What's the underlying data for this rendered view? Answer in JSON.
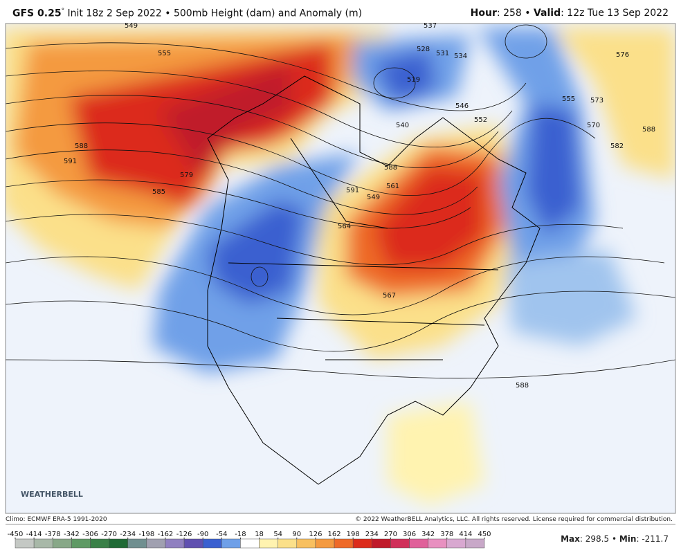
{
  "header": {
    "model": "GFS 0.25",
    "degree": "°",
    "init": "Init 18z 2 Sep 2022",
    "separator": "•",
    "product": "500mb Height (dam) and Anomaly (m)",
    "hour_label": "Hour",
    "hour": "258",
    "valid_label": "Valid",
    "valid": "12z Tue 13 Sep 2022"
  },
  "map": {
    "logo": "WEATHERBELL",
    "contour_labels": [
      "549",
      "555",
      "588",
      "591",
      "585",
      "579",
      "528",
      "531",
      "534",
      "519",
      "537",
      "546",
      "552",
      "573",
      "570",
      "555",
      "582",
      "576",
      "588",
      "591",
      "549",
      "561",
      "564",
      "567",
      "588",
      "588",
      "540"
    ]
  },
  "footer": {
    "climo": "Climo: ECMWF ERA-5 1991-2020",
    "copyright": "© 2022 WeatherBELL Analytics, LLC. All rights reserved. License required for commercial distribution.",
    "max_label": "Max",
    "max": "298.5",
    "min_label": "Min",
    "min": "-211.7"
  },
  "colorbar": {
    "ticks": [
      -450,
      -414,
      -378,
      -342,
      -306,
      -270,
      -234,
      -198,
      -162,
      -126,
      -90,
      -54,
      -18,
      18,
      54,
      90,
      126,
      162,
      198,
      234,
      270,
      306,
      342,
      378,
      414,
      450
    ],
    "colors": [
      "#c4c8c4",
      "#a8b8a8",
      "#88a888",
      "#5f9a65",
      "#3a8048",
      "#1f6a35",
      "#708f90",
      "#a0a0b0",
      "#9080c0",
      "#6050b0",
      "#3a60d0",
      "#6fa0e8",
      "#ffffff",
      "#fff3b0",
      "#fbe08a",
      "#f8c060",
      "#f49a40",
      "#ee6a28",
      "#dc2c1c",
      "#c01a2a",
      "#d0305a",
      "#e0609a",
      "#e890c0",
      "#d8a8d0",
      "#c8a8c8"
    ]
  }
}
